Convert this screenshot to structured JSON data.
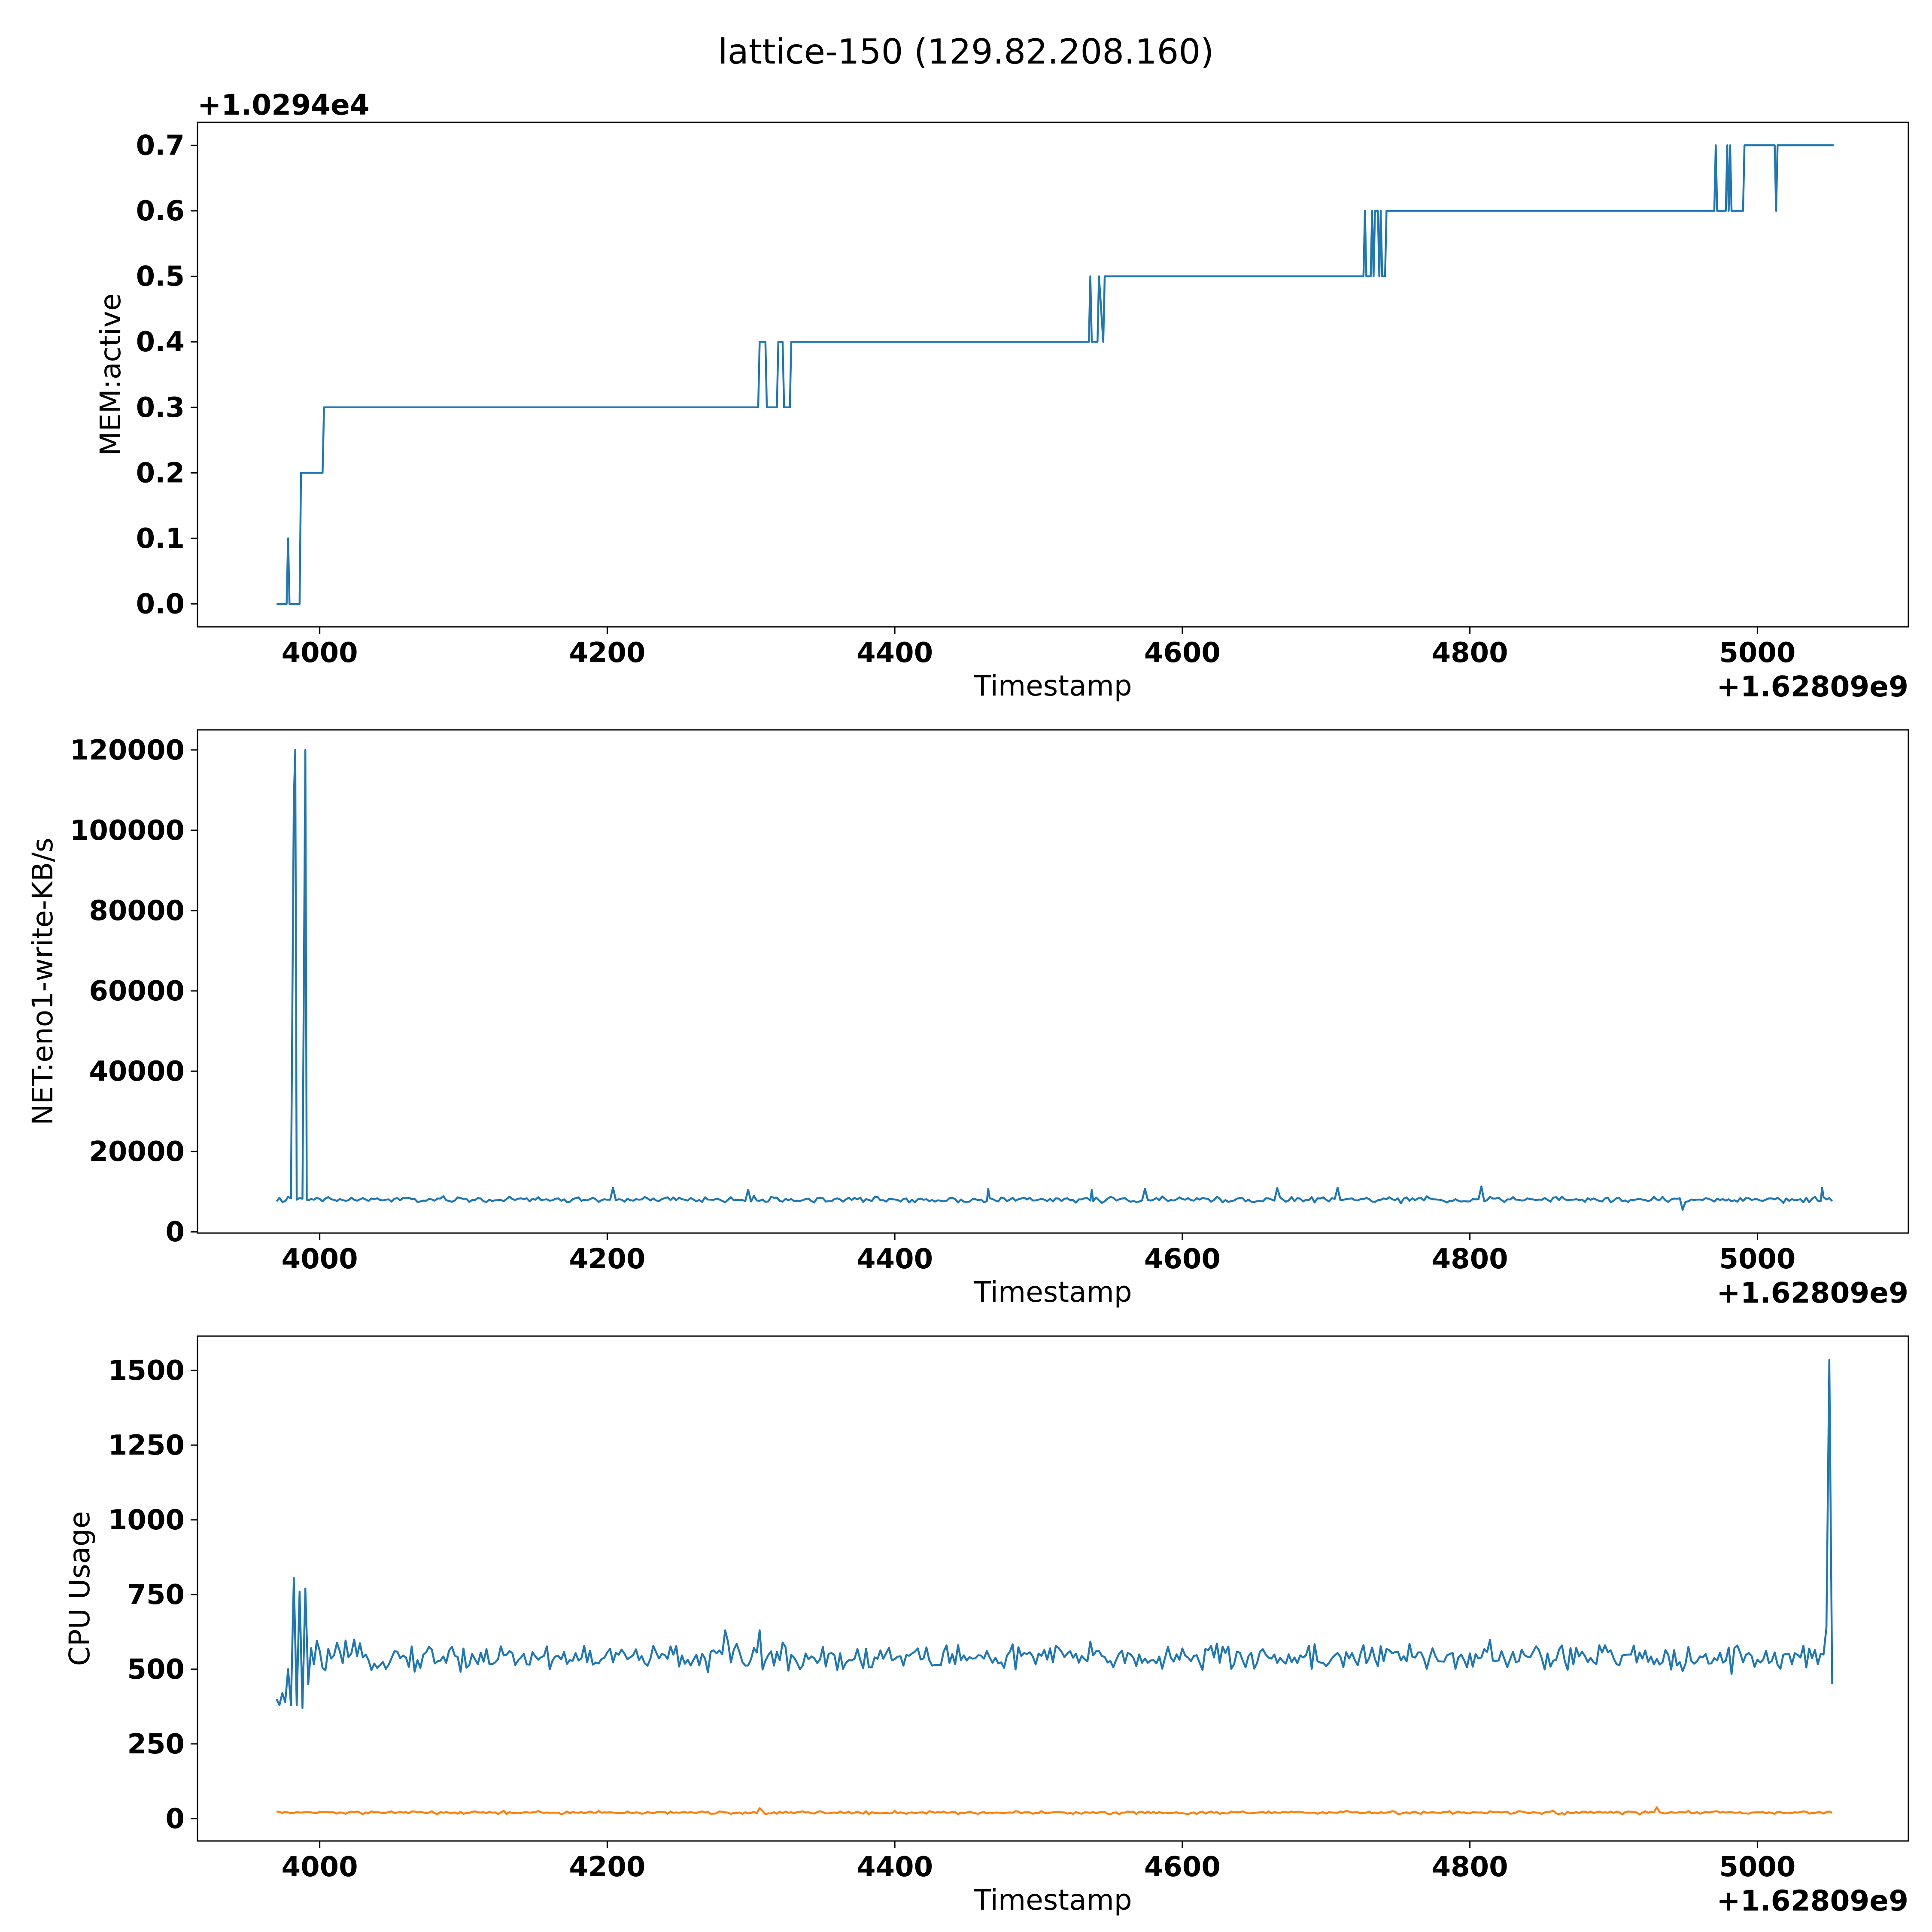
{
  "figure": {
    "title": "lattice-150 (129.82.208.160)"
  },
  "colors": {
    "series_blue": "#1f77b4",
    "series_orange": "#ff7f0e",
    "frame": "#000000"
  },
  "chart_data": [
    {
      "type": "line",
      "title": "",
      "xlabel": "Timestamp",
      "ylabel": "MEM:active",
      "x_offset_label": "+1.62809e9",
      "y_offset_label": "+1.0294e4",
      "xlim": [
        3915,
        5105
      ],
      "ylim": [
        -0.035,
        0.735
      ],
      "xticks": [
        4000,
        4200,
        4400,
        4600,
        4800,
        5000
      ],
      "yticks": [
        0.0,
        0.1,
        0.2,
        0.3,
        0.4,
        0.5,
        0.6,
        0.7
      ],
      "ytick_labels": [
        "0.0",
        "0.1",
        "0.2",
        "0.3",
        "0.4",
        "0.5",
        "0.6",
        "0.7"
      ],
      "grid": false,
      "series": [
        {
          "color": "#1f77b4",
          "x": [
            3970,
            3977,
            3978,
            3979,
            3980,
            3986,
            3987,
            4002,
            4003,
            4305,
            4306,
            4310,
            4311,
            4318,
            4319,
            4322,
            4323,
            4327,
            4328,
            4535,
            4536,
            4537,
            4538,
            4541,
            4542,
            4545,
            4546,
            4726,
            4727,
            4728,
            4729,
            4731,
            4732,
            4733,
            4734,
            4736,
            4737,
            4738,
            4739,
            4741,
            4742,
            4970,
            4971,
            4972,
            4973,
            4978,
            4979,
            4980,
            4981,
            4982,
            4983,
            4984,
            4985,
            4990,
            4991,
            5012,
            5013,
            5014,
            5015,
            5053
          ],
          "y": [
            0.0,
            0.0,
            0.1,
            0.0,
            0.0,
            0.0,
            0.2,
            0.2,
            0.3,
            0.3,
            0.4,
            0.4,
            0.3,
            0.3,
            0.4,
            0.4,
            0.3,
            0.3,
            0.4,
            0.4,
            0.5,
            0.4,
            0.4,
            0.4,
            0.5,
            0.4,
            0.5,
            0.5,
            0.6,
            0.5,
            0.5,
            0.5,
            0.6,
            0.5,
            0.6,
            0.6,
            0.5,
            0.6,
            0.5,
            0.5,
            0.6,
            0.6,
            0.7,
            0.6,
            0.6,
            0.6,
            0.7,
            0.6,
            0.7,
            0.6,
            0.6,
            0.6,
            0.6,
            0.6,
            0.7,
            0.7,
            0.6,
            0.7,
            0.7,
            0.7
          ]
        }
      ]
    },
    {
      "type": "line",
      "title": "",
      "xlabel": "Timestamp",
      "ylabel": "NET:eno1-write-KB/s",
      "x_offset_label": "+1.62809e9",
      "xlim": [
        3915,
        5105
      ],
      "ylim": [
        -300,
        125000
      ],
      "xticks": [
        4000,
        4200,
        4400,
        4600,
        4800,
        5000
      ],
      "yticks": [
        0,
        20000,
        40000,
        60000,
        80000,
        100000,
        120000
      ],
      "ytick_labels": [
        "0",
        "20000",
        "40000",
        "60000",
        "80000",
        "100000",
        "120000"
      ],
      "grid": false,
      "series": [
        {
          "color": "#1f77b4",
          "x_start": 3970,
          "x_end": 5053,
          "x_step": 2,
          "baseline": 8000,
          "noise": 700,
          "spikes": [
            {
              "x": 3982,
              "y": 108000
            },
            {
              "x": 3983,
              "y": 120000
            },
            {
              "x": 3984,
              "y": 8000
            },
            {
              "x": 3990,
              "y": 120000
            },
            {
              "x": 3991,
              "y": 8000
            },
            {
              "x": 4204,
              "y": 11000
            },
            {
              "x": 4298,
              "y": 10500
            },
            {
              "x": 4465,
              "y": 10700
            },
            {
              "x": 4537,
              "y": 10400
            },
            {
              "x": 4574,
              "y": 10700
            },
            {
              "x": 4666,
              "y": 10900
            },
            {
              "x": 4708,
              "y": 11000
            },
            {
              "x": 4808,
              "y": 11300
            },
            {
              "x": 4948,
              "y": 5500
            },
            {
              "x": 5045,
              "y": 11000
            }
          ]
        }
      ]
    },
    {
      "type": "line",
      "title": "",
      "xlabel": "Timestamp",
      "ylabel": "CPU Usage",
      "x_offset_label": "+1.62809e9",
      "xlim": [
        3915,
        5105
      ],
      "ylim": [
        -75,
        1615
      ],
      "xticks": [
        4000,
        4200,
        4400,
        4600,
        4800,
        5000
      ],
      "yticks": [
        0,
        250,
        500,
        750,
        1000,
        1250,
        1500
      ],
      "ytick_labels": [
        "0",
        "250",
        "500",
        "750",
        "1000",
        "1250",
        "1500"
      ],
      "grid": false,
      "series": [
        {
          "color": "#1f77b4",
          "x_start": 3970,
          "x_end": 5053,
          "x_step": 2,
          "baseline": 540,
          "noise": 45,
          "spikes": [
            {
              "x": 3970,
              "y": 400
            },
            {
              "x": 3972,
              "y": 380
            },
            {
              "x": 3974,
              "y": 420
            },
            {
              "x": 3976,
              "y": 390
            },
            {
              "x": 3978,
              "y": 500
            },
            {
              "x": 3980,
              "y": 380
            },
            {
              "x": 3982,
              "y": 805
            },
            {
              "x": 3984,
              "y": 380
            },
            {
              "x": 3986,
              "y": 760
            },
            {
              "x": 3988,
              "y": 370
            },
            {
              "x": 3990,
              "y": 770
            },
            {
              "x": 3992,
              "y": 450
            },
            {
              "x": 4306,
              "y": 630
            },
            {
              "x": 4282,
              "y": 630
            },
            {
              "x": 5048,
              "y": 640
            },
            {
              "x": 5050,
              "y": 1535
            },
            {
              "x": 5052,
              "y": 450
            }
          ]
        },
        {
          "color": "#ff7f0e",
          "x_start": 3970,
          "x_end": 5053,
          "x_step": 2,
          "baseline": 20,
          "noise": 5,
          "spikes": [
            {
              "x": 4306,
              "y": 35
            },
            {
              "x": 4930,
              "y": 38
            }
          ]
        }
      ]
    }
  ]
}
